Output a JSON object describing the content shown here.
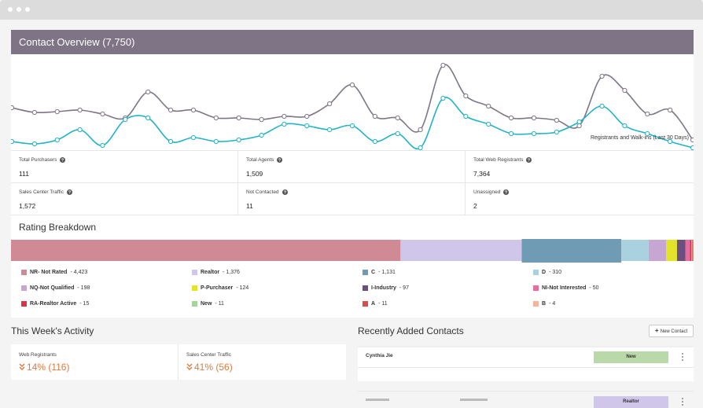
{
  "header": {
    "title": "Contact Overview (7,750)"
  },
  "chart_data": [
    {
      "type": "line",
      "annotation": "Registrants and Walk-ins (Last 30 Days)",
      "ylim": [
        0,
        120
      ],
      "series": [
        {
          "color": "#7e7686",
          "values": [
            53,
            47,
            48,
            50,
            45,
            40,
            73,
            50,
            50,
            40,
            40,
            38,
            42,
            42,
            58,
            82,
            42,
            40,
            25,
            107,
            68,
            55,
            40,
            40,
            37,
            30,
            93,
            75,
            45,
            50,
            12
          ]
        },
        {
          "color": "#21b3c6",
          "values": [
            10,
            7,
            12,
            25,
            5,
            38,
            40,
            10,
            15,
            10,
            12,
            18,
            32,
            30,
            25,
            30,
            10,
            20,
            2,
            65,
            42,
            32,
            20,
            20,
            22,
            35,
            55,
            30,
            20,
            10,
            2
          ]
        }
      ]
    },
    {
      "type": "stacked-bar",
      "title": "Rating Breakdown",
      "xlim": [
        0,
        7750
      ],
      "series": [
        {
          "name": "NR- Not Rated",
          "color": "#cf8a96",
          "values": [
            4423
          ],
          "value_labels": [
            "4,423"
          ]
        },
        {
          "name": "Realtor",
          "color": "#d0c6ea",
          "values": [
            1376
          ],
          "value_labels": [
            "1,376"
          ]
        },
        {
          "name": "C",
          "color": "#6f9bb5",
          "values": [
            1131
          ],
          "value_labels": [
            "1,131"
          ]
        },
        {
          "name": "D",
          "color": "#aad1df",
          "values": [
            310
          ]
        },
        {
          "name": "NQ-Not Qualified",
          "color": "#c8a6d4",
          "values": [
            198
          ]
        },
        {
          "name": "P-Purchaser",
          "color": "#e3e32c",
          "values": [
            124
          ]
        },
        {
          "name": "I-Industry",
          "color": "#6b4f7e",
          "values": [
            97
          ]
        },
        {
          "name": "NI-Not Interested",
          "color": "#e66e9e",
          "values": [
            50
          ]
        },
        {
          "name": "RA-Realtor Active",
          "color": "#e03048",
          "values": [
            15
          ]
        },
        {
          "name": "New",
          "color": "#a5d49a",
          "values": [
            11
          ]
        },
        {
          "name": "A",
          "color": "#d94d4d",
          "values": [
            11
          ]
        },
        {
          "name": "B",
          "color": "#f4b49a",
          "values": [
            4
          ]
        }
      ]
    }
  ],
  "stats": [
    {
      "label": "Total Purchasers",
      "value": "111"
    },
    {
      "label": "Total Agents",
      "value": "1,509"
    },
    {
      "label": "Total Web Registrants",
      "value": "7,364"
    },
    {
      "label": "Sales Center Traffic",
      "value": "1,572"
    },
    {
      "label": "Not Contacted",
      "value": "11"
    },
    {
      "label": "Unassigned",
      "value": "2"
    }
  ],
  "activity": {
    "title": "This Week's Activity",
    "items": [
      {
        "label": "Web Registrants",
        "value": "14% (116)"
      },
      {
        "label": "Sales Center Traffic",
        "value": "41% (56)"
      }
    ]
  },
  "recent": {
    "title": "Recently Added Contacts",
    "button": "New Contact",
    "rows": [
      {
        "name": "Cynthia Jie",
        "badge": "New"
      },
      {
        "badge": "Realtor"
      }
    ]
  }
}
